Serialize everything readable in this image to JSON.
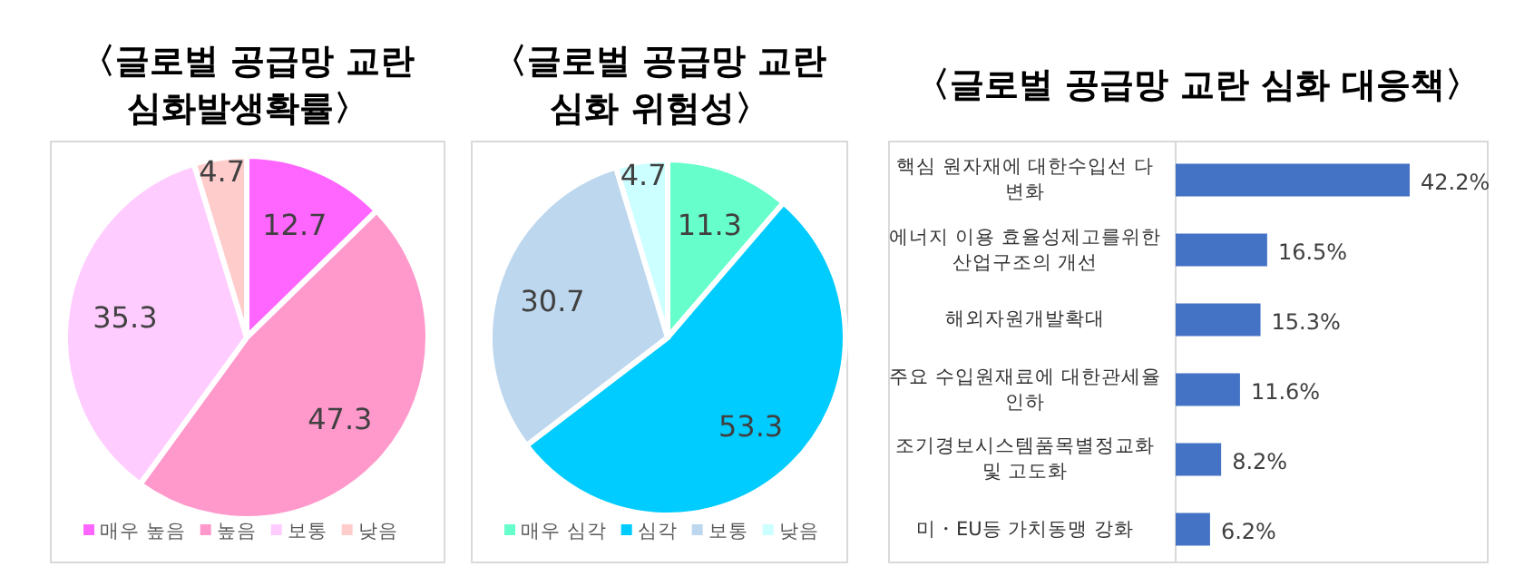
{
  "chart_data": [
    {
      "type": "pie",
      "title": "〈글로벌 공급망 교란 심화발생확률〉",
      "categories": [
        "매우 높음",
        "높음",
        "보통",
        "낮음"
      ],
      "values": [
        12.7,
        47.3,
        35.3,
        4.7
      ],
      "colors": [
        "#ff66ff",
        "#ff99cc",
        "#ffccff",
        "#ffcccc"
      ],
      "data_labels": true,
      "legend": "bottom"
    },
    {
      "type": "pie",
      "title": "〈글로벌 공급망 교란 심화 위험성〉",
      "categories": [
        "매우 심각",
        "심각",
        "보통",
        "낮음"
      ],
      "values": [
        11.3,
        53.3,
        30.7,
        4.7
      ],
      "colors": [
        "#66ffcc",
        "#00ccff",
        "#bdd7ee",
        "#ccffff"
      ],
      "data_labels": true,
      "legend": "bottom"
    },
    {
      "type": "bar",
      "orientation": "horizontal",
      "title": "〈글로벌 공급망 교란 심화 대응책〉",
      "categories": [
        "핵심 원자재에 대한수입선 다변화",
        "에너지 이용 효율성제고를위한 산업구조의 개선",
        "해외자원개발확대",
        "주요 수입원재료에 대한관세율 인하",
        "조기경보시스템품목별정교화 및 고도화",
        "미・EU등 가치동맹 강화"
      ],
      "values": [
        42.2,
        16.5,
        15.3,
        11.6,
        8.2,
        6.2
      ],
      "value_labels": [
        "42.2%",
        "16.5%",
        "15.3%",
        "11.6%",
        "8.2%",
        "6.2%"
      ],
      "color": "#4472c4"
    }
  ]
}
